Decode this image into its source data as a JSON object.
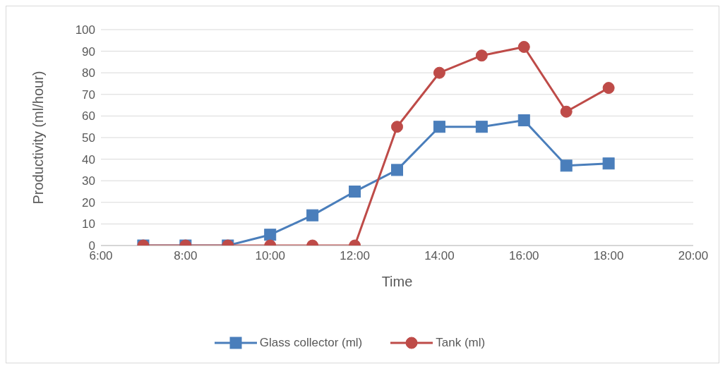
{
  "chart_data": {
    "type": "line",
    "xlabel": "Time",
    "ylabel": "Productivity  (ml/hour)",
    "x": [
      7,
      8,
      9,
      10,
      11,
      12,
      13,
      14,
      15,
      16,
      17,
      18
    ],
    "series": [
      {
        "name": "Glass collector (ml)",
        "color": "#4a7ebb",
        "marker": "square",
        "values": [
          0,
          0,
          0,
          5,
          14,
          25,
          35,
          55,
          55,
          58,
          37,
          38
        ]
      },
      {
        "name": "Tank (ml)",
        "color": "#be4b48",
        "marker": "circle",
        "values": [
          0,
          0,
          0,
          0,
          0,
          0,
          55,
          80,
          88,
          92,
          62,
          73
        ]
      }
    ],
    "xlim": [
      6,
      20
    ],
    "xticks": [
      {
        "value": 6,
        "label": "6:00"
      },
      {
        "value": 8,
        "label": "8:00"
      },
      {
        "value": 10,
        "label": "10:00"
      },
      {
        "value": 12,
        "label": "12:00"
      },
      {
        "value": 14,
        "label": "14:00"
      },
      {
        "value": 16,
        "label": "16:00"
      },
      {
        "value": 18,
        "label": "18:00"
      },
      {
        "value": 20,
        "label": "20:00"
      }
    ],
    "ylim": [
      0,
      100
    ],
    "yticks": [
      0,
      10,
      20,
      30,
      40,
      50,
      60,
      70,
      80,
      90,
      100
    ],
    "grid": "y",
    "legend": "bottom",
    "line_style": "solid"
  }
}
